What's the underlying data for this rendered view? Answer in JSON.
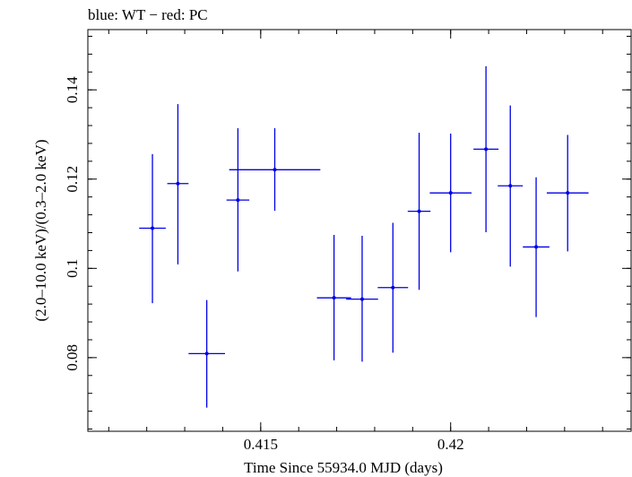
{
  "chart_data": {
    "type": "scatter",
    "title": "blue: WT − red: PC",
    "xlabel": "Time Since 55934.0 MJD (days)",
    "ylabel": "(2.0–10.0 keV)/(0.3–2.0 keV)",
    "xlim": [
      0.41045,
      0.42475
    ],
    "ylim": [
      0.0635,
      0.1535
    ],
    "x_ticks": [
      {
        "value": 0.415,
        "label": "0.415"
      },
      {
        "value": 0.42,
        "label": "0.42"
      }
    ],
    "y_ticks": [
      {
        "value": 0.08,
        "label": "0.08"
      },
      {
        "value": 0.1,
        "label": "0.1"
      },
      {
        "value": 0.12,
        "label": "0.12"
      },
      {
        "value": 0.14,
        "label": "0.14"
      }
    ],
    "x_minor_step": 0.001,
    "y_minor_step": 0.004,
    "grid": false,
    "series": [
      {
        "color": "#0000e6",
        "points": [
          {
            "x": 0.41215,
            "y": 0.109,
            "xerr": 0.00035,
            "ylo": 0.0922,
            "yhi": 0.1256
          },
          {
            "x": 0.41282,
            "y": 0.119,
            "xerr": 0.00028,
            "ylo": 0.1009,
            "yhi": 0.1368
          },
          {
            "x": 0.41358,
            "y": 0.0809,
            "xerr": 0.00048,
            "ylo": 0.0688,
            "yhi": 0.0929
          },
          {
            "x": 0.4144,
            "y": 0.1153,
            "xerr": 0.0003,
            "ylo": 0.0993,
            "yhi": 0.1314
          },
          {
            "x": 0.41537,
            "y": 0.1221,
            "xerr": 0.0012,
            "ylo": 0.1129,
            "yhi": 0.1314
          },
          {
            "x": 0.41693,
            "y": 0.0934,
            "xerr": 0.00045,
            "ylo": 0.0794,
            "yhi": 0.1075
          },
          {
            "x": 0.41767,
            "y": 0.0931,
            "xerr": 0.00042,
            "ylo": 0.0791,
            "yhi": 0.1073
          },
          {
            "x": 0.41848,
            "y": 0.0957,
            "xerr": 0.0004,
            "ylo": 0.0811,
            "yhi": 0.1102
          },
          {
            "x": 0.41917,
            "y": 0.1128,
            "xerr": 0.0003,
            "ylo": 0.0952,
            "yhi": 0.1304
          },
          {
            "x": 0.42,
            "y": 0.1169,
            "xerr": 0.00055,
            "ylo": 0.1036,
            "yhi": 0.1302
          },
          {
            "x": 0.42093,
            "y": 0.1267,
            "xerr": 0.00033,
            "ylo": 0.1081,
            "yhi": 0.1453
          },
          {
            "x": 0.42157,
            "y": 0.1185,
            "xerr": 0.00033,
            "ylo": 0.1004,
            "yhi": 0.1365
          },
          {
            "x": 0.42225,
            "y": 0.1048,
            "xerr": 0.00035,
            "ylo": 0.0891,
            "yhi": 0.1204
          },
          {
            "x": 0.42308,
            "y": 0.1169,
            "xerr": 0.00055,
            "ylo": 0.1038,
            "yhi": 0.1299
          }
        ]
      }
    ]
  }
}
